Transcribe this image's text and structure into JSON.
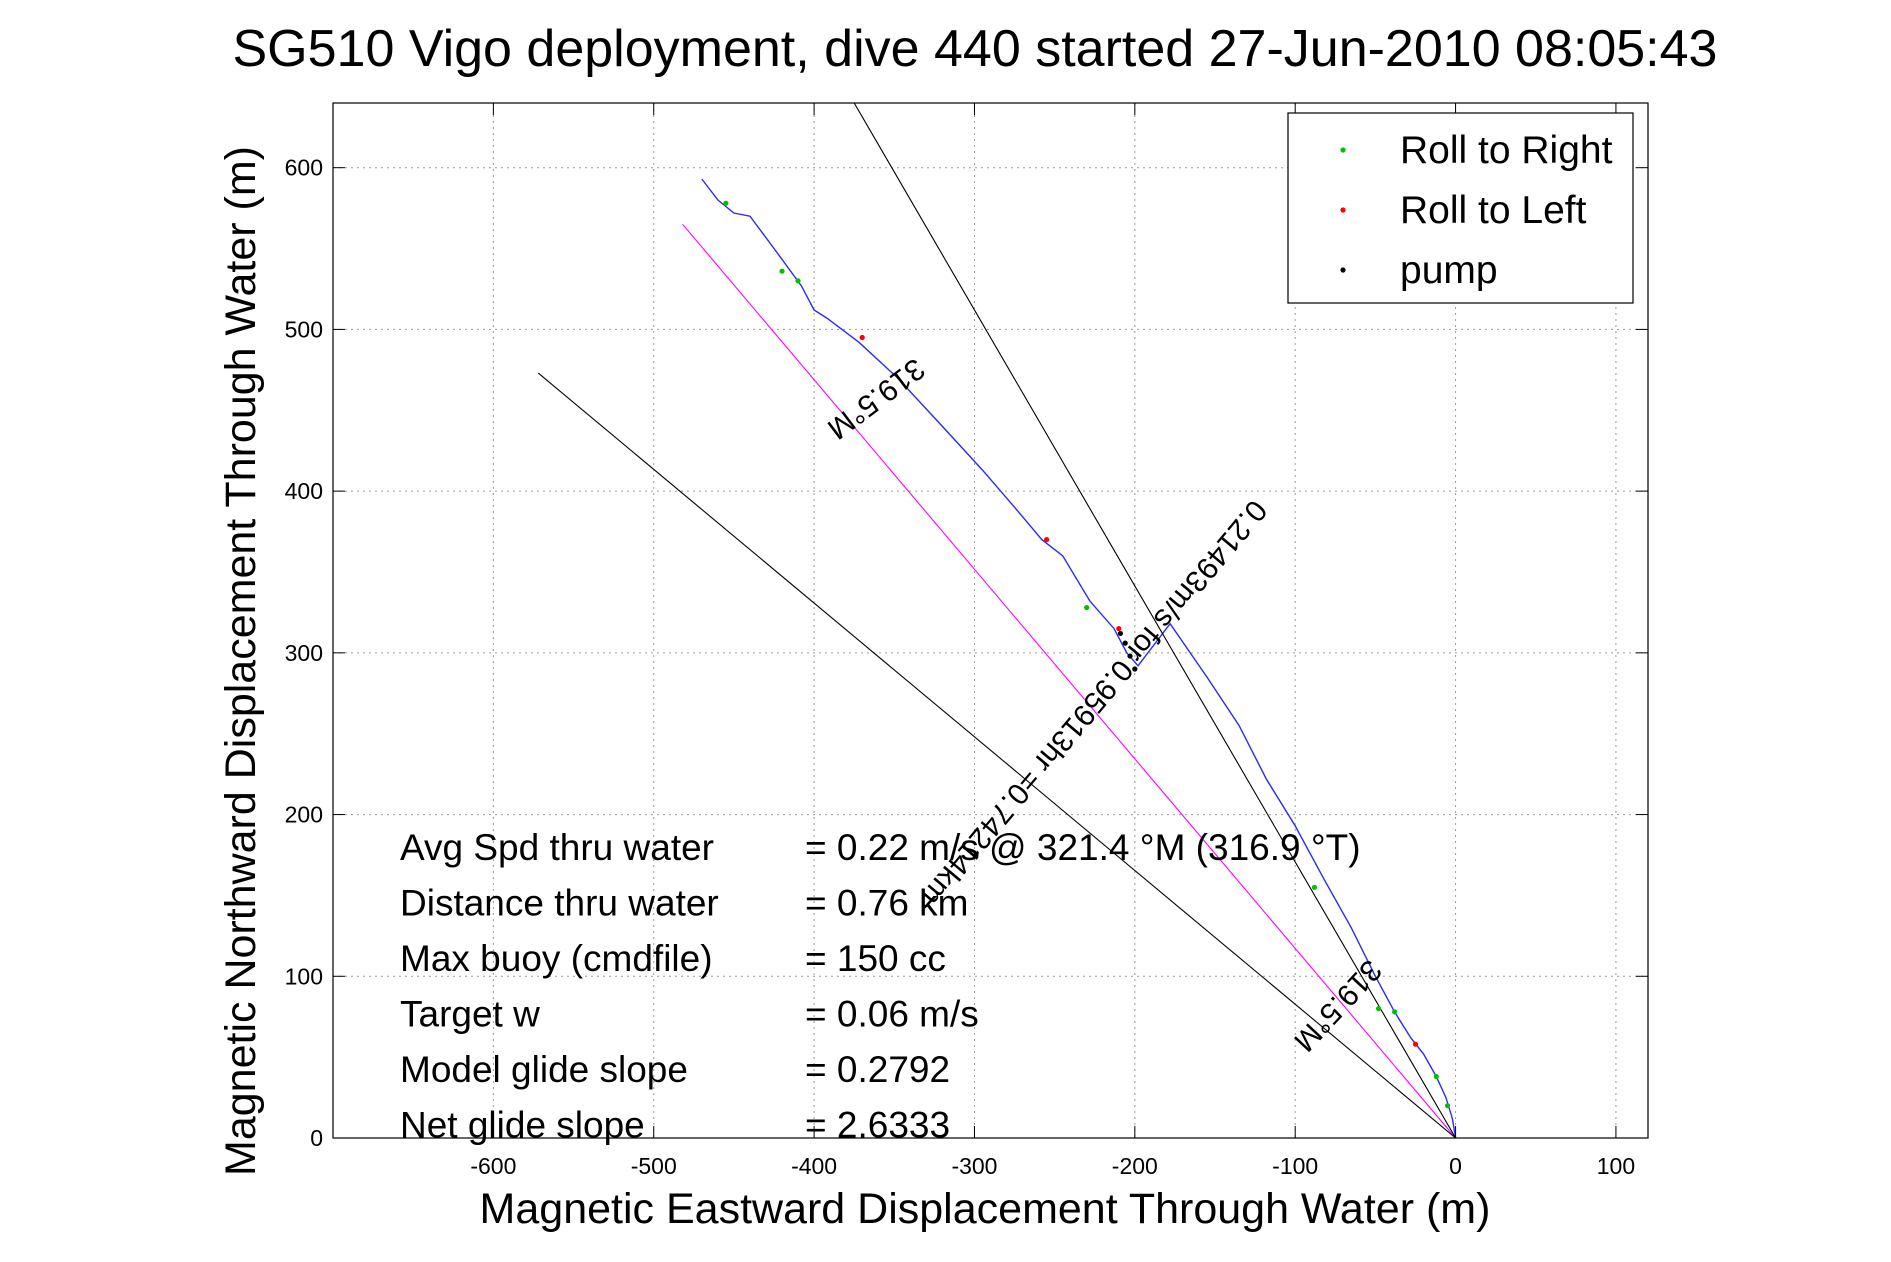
{
  "chart_data": {
    "type": "scatter",
    "title": "SG510 Vigo deployment, dive 440 started 27-Jun-2010 08:05:43",
    "xlabel": "Magnetic Eastward Displacement Through Water (m)",
    "ylabel": "Magnetic Northward Displacement Through Water (m)",
    "xlim": [
      -700,
      120
    ],
    "ylim": [
      0,
      640
    ],
    "xticks": [
      -600,
      -500,
      -400,
      -300,
      -200,
      -100,
      0,
      100
    ],
    "yticks": [
      0,
      100,
      200,
      300,
      400,
      500,
      600
    ],
    "grid": true,
    "legend_position": "top-right",
    "legend": [
      {
        "label": "Roll to Right",
        "color": "#00c000"
      },
      {
        "label": "Roll to Left",
        "color": "#ff0000"
      },
      {
        "label": "pump",
        "color": "#000000"
      }
    ],
    "series": [
      {
        "name": "track",
        "color": "#2a2aff",
        "x": [
          0,
          -2,
          -6,
          -12,
          -20,
          -28,
          -38,
          -50,
          -65,
          -82,
          -100,
          -118,
          -135,
          -155,
          -178,
          -198,
          -205,
          -213,
          -228,
          -245,
          -258,
          -275,
          -295,
          -320,
          -348,
          -372,
          -392,
          -400,
          -408,
          -425,
          -440,
          -450,
          -460,
          -470
        ],
        "y": [
          0,
          12,
          25,
          38,
          52,
          62,
          78,
          100,
          130,
          160,
          193,
          222,
          255,
          285,
          318,
          292,
          300,
          315,
          332,
          360,
          370,
          390,
          413,
          440,
          470,
          492,
          507,
          512,
          527,
          550,
          570,
          572,
          580,
          593
        ]
      },
      {
        "name": "Roll to Right",
        "color": "#00c000",
        "x": [
          -5,
          -12,
          -38,
          -48,
          -88,
          -230,
          -410,
          -420,
          -455
        ],
        "y": [
          20,
          38,
          78,
          80,
          155,
          328,
          530,
          536,
          578
        ]
      },
      {
        "name": "Roll to Left",
        "color": "#ff0000",
        "x": [
          -25,
          -255,
          -370,
          -210
        ],
        "y": [
          58,
          370,
          495,
          315
        ]
      },
      {
        "name": "pump",
        "color": "#000000",
        "x": [
          -200,
          -203,
          -206,
          -209
        ],
        "y": [
          290,
          298,
          306,
          312
        ]
      },
      {
        "name": "heading line",
        "color": "#ff00ff",
        "x": [
          0,
          -482
        ],
        "y": [
          0,
          565
        ]
      },
      {
        "name": "bound 1",
        "color": "#000000",
        "x": [
          0,
          -375
        ],
        "y": [
          0,
          640
        ]
      },
      {
        "name": "bound 2",
        "color": "#000000",
        "x": [
          0,
          -572
        ],
        "y": [
          0,
          473
        ]
      }
    ],
    "annotations": [
      {
        "text": "319.5°M",
        "x": -365,
        "y": 462,
        "rotation": 143
      },
      {
        "text": "0.21493m/s for 0.95913hr =0.74214km",
        "x": -230,
        "y": 273,
        "rotation": 130
      },
      {
        "text": "319.5°M",
        "x": -78,
        "y": 86,
        "rotation": 133
      }
    ],
    "stats": [
      {
        "label": "Avg Spd thru water",
        "value": "=  0.22 m/s @ 321.4 °M (316.9 °T)"
      },
      {
        "label": "Distance thru water",
        "value": "=  0.76 km"
      },
      {
        "label": "Max buoy (cmdfile)",
        "value": "= 150 cc"
      },
      {
        "label": "Target w",
        "value": "= 0.06 m/s"
      },
      {
        "label": "Model glide slope",
        "value": "= 0.2792"
      },
      {
        "label": "Net glide slope",
        "value": "= 2.6333"
      }
    ]
  }
}
